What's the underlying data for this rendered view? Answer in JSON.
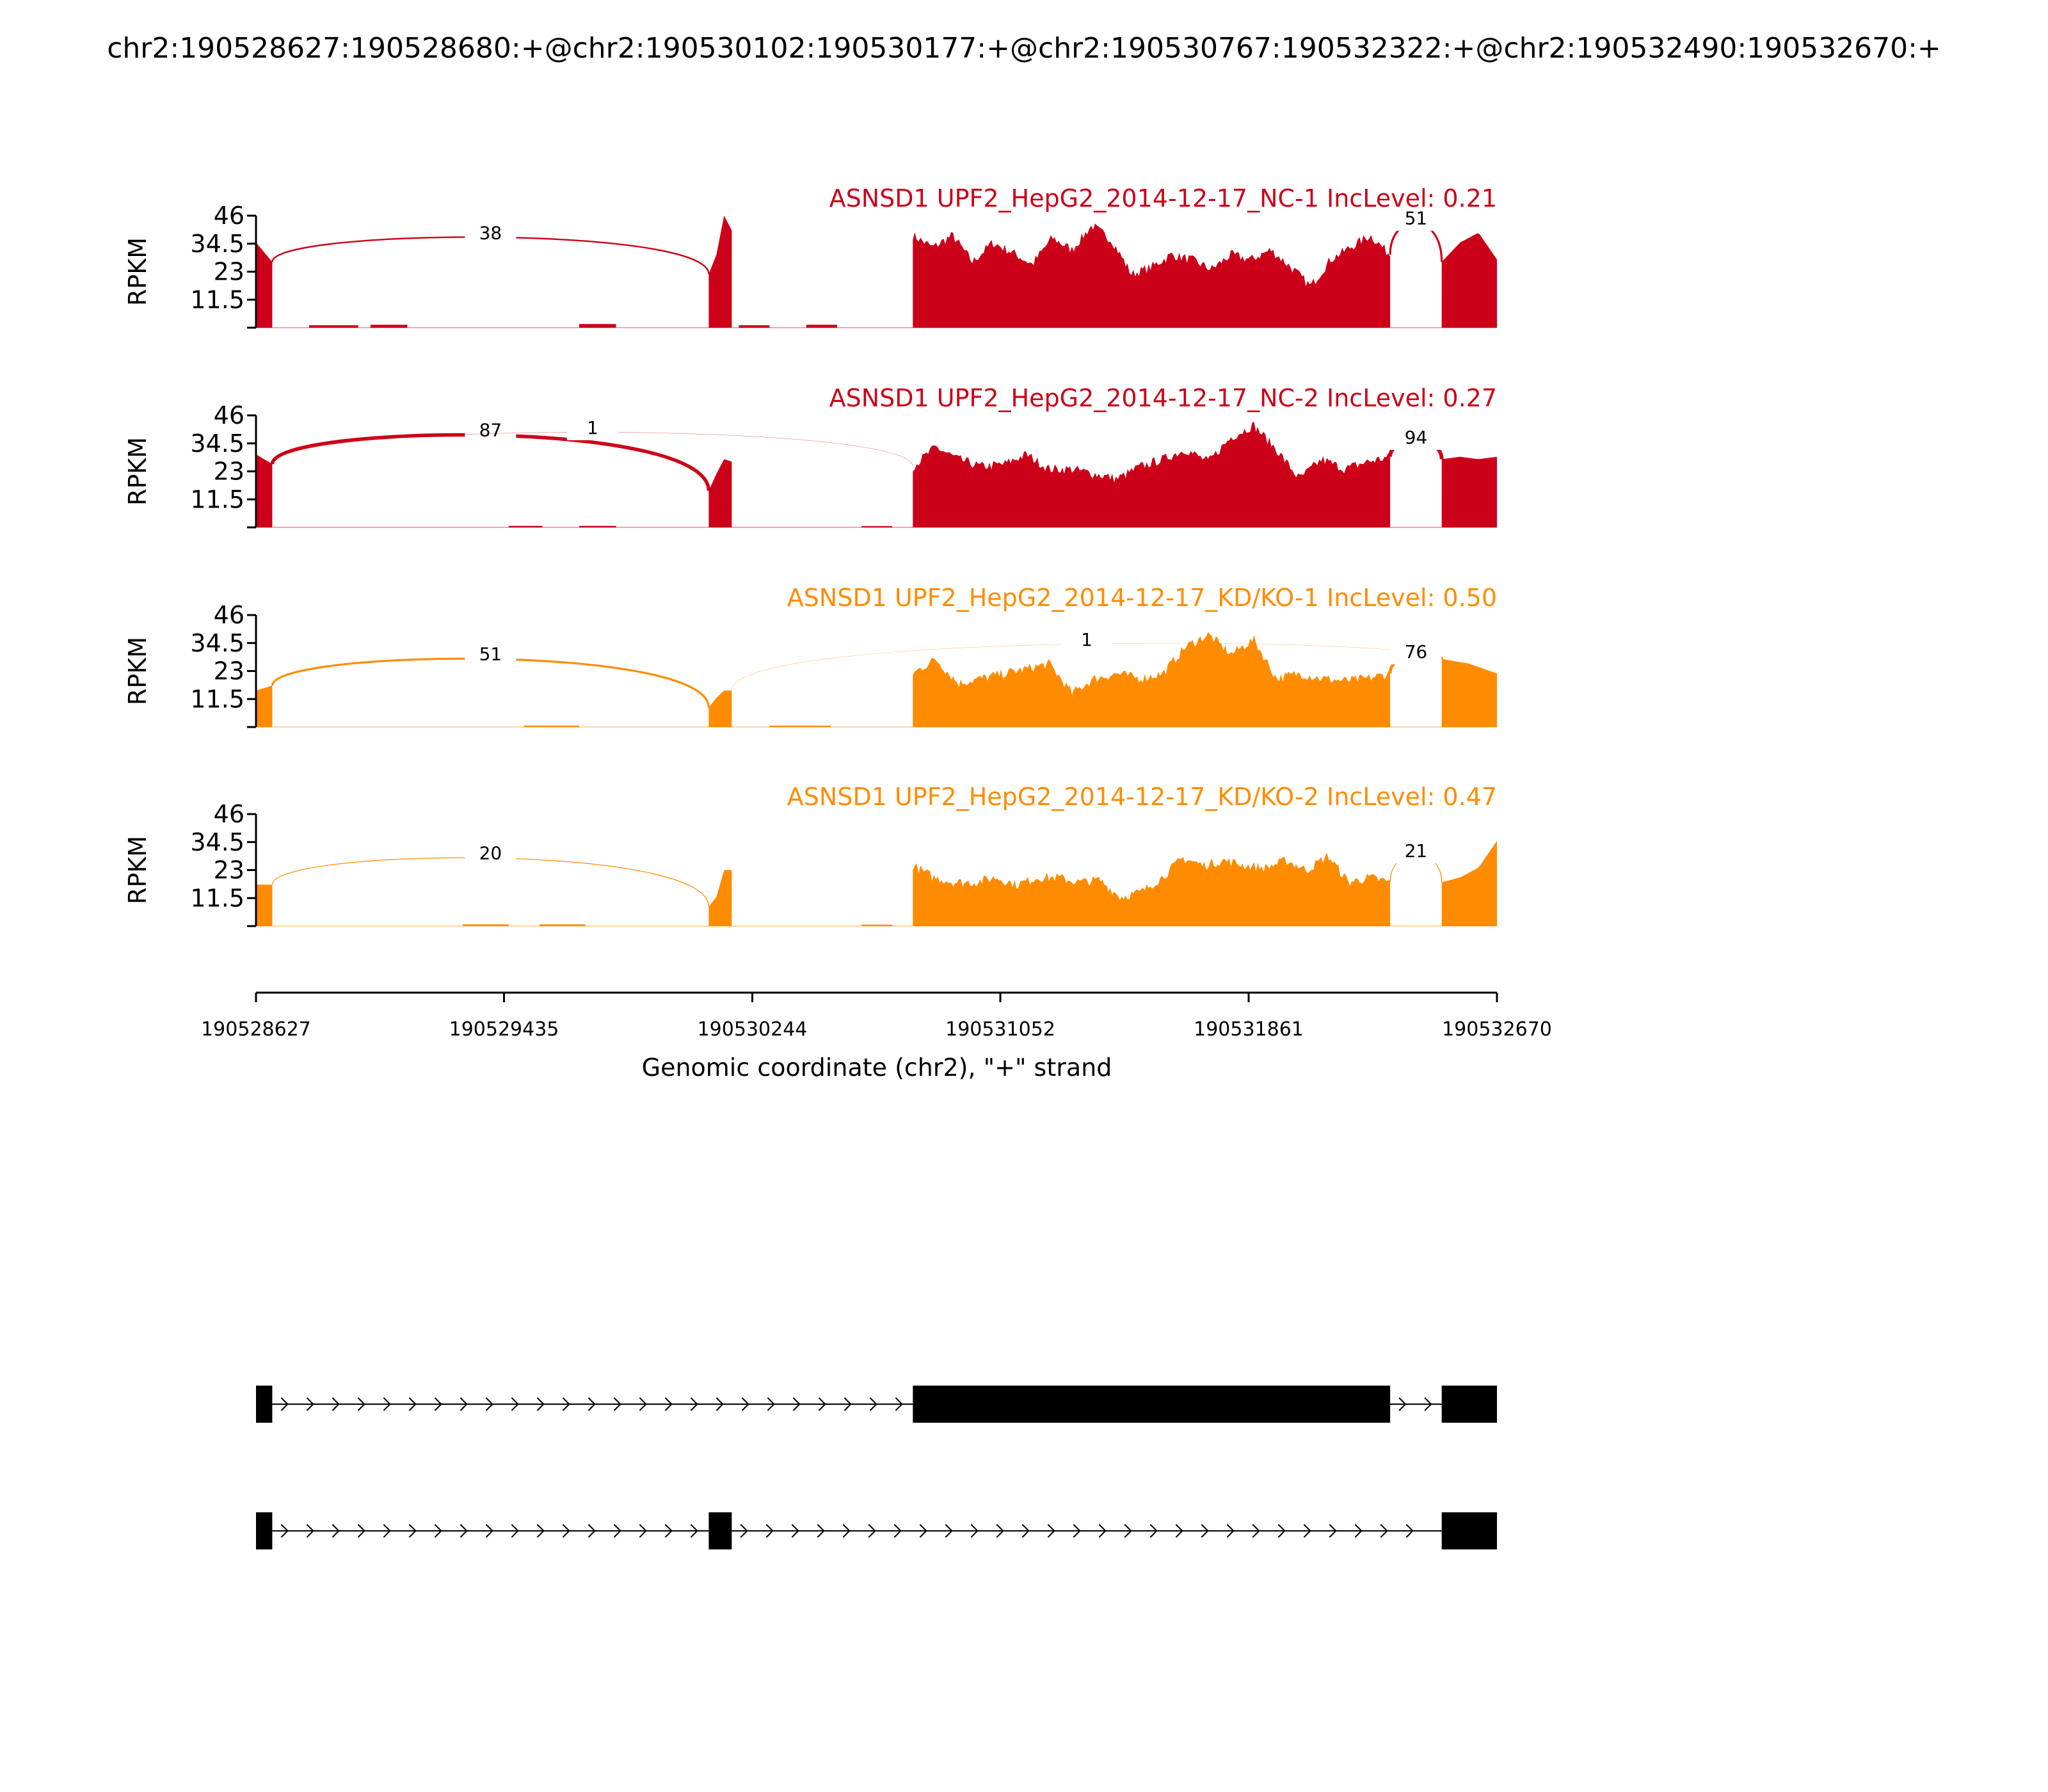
{
  "chart_data": {
    "type": "area",
    "title": "chr2:190528627:190528680:+@chr2:190530102:190530177:+@chr2:190530767:190532322:+@chr2:190532490:190532670:+",
    "xlabel": "Genomic coordinate (chr2), \"+\" strand",
    "ylabel": "RPKM",
    "xlim": [
      190528627,
      190532670
    ],
    "xticks": [
      "190528627",
      "190529435",
      "190530244",
      "190531052",
      "190531861",
      "190532670"
    ],
    "ylim": [
      0,
      46
    ],
    "yticks": [
      "11.5",
      "23",
      "34.5",
      "46"
    ],
    "exons": [
      [
        190528627,
        190528680
      ],
      [
        190530102,
        190530177
      ],
      [
        190530767,
        190532322
      ],
      [
        190532490,
        190532670
      ]
    ],
    "tracks": [
      {
        "label": "ASNSD1 UPF2_HepG2_2014-12-17_NC-1 IncLevel: 0.21",
        "color": "#cc0018",
        "coverage": [
          [
            35,
            27
          ],
          [
            22,
            30,
            46,
            40
          ],
          [
            38,
            33,
            38,
            27,
            35,
            31,
            26,
            37,
            32,
            42,
            36,
            22,
            25,
            30,
            28,
            24,
            30,
            28,
            32,
            25,
            17,
            28,
            33,
            38,
            30
          ],
          [
            27,
            35,
            39,
            28
          ]
        ],
        "intron_bumps": [
          [
            190528800,
            190528960,
            1
          ],
          [
            190529000,
            190529120,
            1.2
          ],
          [
            190529680,
            190529800,
            1.5
          ],
          [
            190530200,
            190530300,
            1
          ],
          [
            190530420,
            190530520,
            1.2
          ]
        ],
        "junctions": [
          {
            "from": 0,
            "to": 1,
            "count": 38,
            "peak": 38
          },
          {
            "from": 2,
            "to": 3,
            "count": 51,
            "peak": 44
          }
        ]
      },
      {
        "label": "ASNSD1 UPF2_HepG2_2014-12-17_NC-2 IncLevel: 0.27",
        "color": "#cc0018",
        "coverage": [
          [
            30,
            26
          ],
          [
            15,
            22,
            28,
            27
          ],
          [
            25,
            33,
            28,
            25,
            26,
            30,
            24,
            24,
            22,
            20,
            25,
            28,
            32,
            27,
            37,
            42,
            32,
            20,
            28,
            24,
            27,
            29
          ],
          [
            28,
            29,
            28,
            29
          ]
        ],
        "intron_bumps": [
          [
            190529450,
            190529560,
            0.6
          ],
          [
            190529680,
            190529800,
            0.6
          ],
          [
            190530600,
            190530700,
            0.5
          ]
        ],
        "junctions": [
          {
            "from": 0,
            "to": 1,
            "count": 87,
            "peak": 39
          },
          {
            "from": 0,
            "to": 2,
            "count": 1,
            "peak": 40
          },
          {
            "from": 2,
            "to": 3,
            "count": 94,
            "peak": 36
          }
        ]
      },
      {
        "label": "ASNSD1 UPF2_HepG2_2014-12-17_KD/KO-1 IncLevel: 0.50",
        "color": "#ff8c00",
        "coverage": [
          [
            15,
            17
          ],
          [
            8,
            12,
            15,
            15
          ],
          [
            22,
            28,
            18,
            20,
            22,
            24,
            26,
            14,
            20,
            22,
            20,
            22,
            33,
            38,
            30,
            36,
            20,
            22,
            20,
            19,
            20,
            22
          ],
          [
            28,
            26,
            22
          ]
        ],
        "intron_bumps": [
          [
            190529500,
            190529680,
            0.6
          ],
          [
            190530300,
            190530500,
            0.6
          ]
        ],
        "junctions": [
          {
            "from": 0,
            "to": 1,
            "count": 51,
            "peak": 29
          },
          {
            "from": 1,
            "to": 3,
            "count": 1,
            "peak": 35
          },
          {
            "from": 2,
            "to": 3,
            "count": 76,
            "peak": 30
          }
        ]
      },
      {
        "label": "ASNSD1 UPF2_HepG2_2014-12-17_KD/KO-2 IncLevel: 0.47",
        "color": "#ff8c00",
        "coverage": [
          [
            17,
            17
          ],
          [
            8,
            12,
            23,
            23
          ],
          [
            25,
            20,
            18,
            18,
            20,
            17,
            20,
            20,
            18,
            19,
            12,
            14,
            20,
            28,
            25,
            27,
            25,
            24,
            27,
            23,
            29,
            18,
            20,
            18
          ],
          [
            18,
            20,
            24,
            35
          ]
        ],
        "intron_bumps": [
          [
            190529300,
            190529450,
            0.7
          ],
          [
            190529550,
            190529700,
            0.7
          ],
          [
            190530600,
            190530700,
            0.6
          ]
        ],
        "junctions": [
          {
            "from": 0,
            "to": 1,
            "count": 20,
            "peak": 29
          },
          {
            "from": 2,
            "to": 3,
            "count": 21,
            "peak": 30
          }
        ]
      }
    ],
    "isoforms": [
      {
        "exons": [
          0,
          2,
          3
        ]
      },
      {
        "exons": [
          0,
          1,
          3
        ]
      }
    ]
  }
}
